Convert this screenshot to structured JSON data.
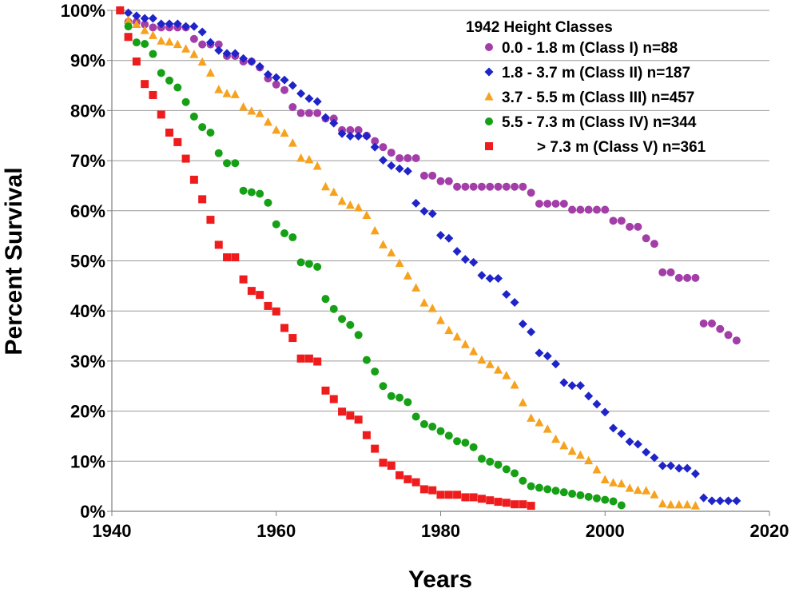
{
  "chart_data": {
    "type": "scatter",
    "xlabel": "Years",
    "ylabel": "Percent Survival",
    "xlim": [
      1940,
      2020
    ],
    "ylim": [
      0,
      100
    ],
    "x_ticks": [
      1940,
      1960,
      1980,
      2000,
      2020
    ],
    "y_ticks": [
      0,
      10,
      20,
      30,
      40,
      50,
      60,
      70,
      80,
      90,
      100
    ],
    "y_tick_labels": [
      "0%",
      "10%",
      "20%",
      "30%",
      "40%",
      "50%",
      "60%",
      "70%",
      "80%",
      "90%",
      "100%"
    ],
    "grid": "horizontal",
    "legend": {
      "title": "1942 Height Classes",
      "placement": "top-right"
    },
    "series": [
      {
        "name": "0.0 - 1.8 m (Class I) n=88",
        "marker": "circle",
        "color": "#a33ea8",
        "x": [
          1941,
          1942,
          1943,
          1944,
          1945,
          1946,
          1947,
          1948,
          1949,
          1950,
          1951,
          1952,
          1953,
          1954,
          1955,
          1956,
          1957,
          1958,
          1959,
          1960,
          1961,
          1962,
          1963,
          1964,
          1965,
          1966,
          1967,
          1968,
          1969,
          1970,
          1971,
          1972,
          1973,
          1974,
          1975,
          1976,
          1977,
          1978,
          1979,
          1980,
          1981,
          1982,
          1983,
          1984,
          1985,
          1986,
          1987,
          1988,
          1989,
          1990,
          1991,
          1992,
          1993,
          1994,
          1995,
          1996,
          1997,
          1998,
          1999,
          2000,
          2001,
          2002,
          2003,
          2004,
          2005,
          2006,
          2007,
          2008,
          2009,
          2010,
          2011,
          2012,
          2013,
          2014,
          2015,
          2016
        ],
        "y": [
          100,
          97.7,
          97.7,
          97.2,
          96.6,
          96.6,
          96.6,
          96.6,
          96.6,
          94.3,
          93.2,
          93.2,
          93.2,
          90.9,
          90.9,
          89.8,
          89.8,
          88.6,
          86.4,
          85.2,
          84.1,
          80.7,
          79.5,
          79.5,
          79.5,
          78.4,
          78.4,
          76.1,
          76.1,
          76.1,
          75,
          73.9,
          72.7,
          71.6,
          70.5,
          70.5,
          70.5,
          67,
          67,
          65.9,
          65.9,
          64.8,
          64.8,
          64.8,
          64.8,
          64.8,
          64.8,
          64.8,
          64.8,
          64.8,
          63.6,
          61.4,
          61.4,
          61.4,
          61.4,
          60.2,
          60.2,
          60.2,
          60.2,
          60.2,
          58,
          58,
          56.8,
          56.8,
          54.5,
          53.4,
          47.7,
          47.7,
          46.6,
          46.6,
          46.6,
          37.5,
          37.5,
          36.4,
          35.2,
          34.1
        ]
      },
      {
        "name": "1.8 - 3.7 m (Class II) n=187",
        "marker": "diamond",
        "color": "#1f24c9",
        "x": [
          1941,
          1942,
          1943,
          1944,
          1945,
          1946,
          1947,
          1948,
          1949,
          1950,
          1951,
          1952,
          1953,
          1954,
          1955,
          1956,
          1957,
          1958,
          1959,
          1960,
          1961,
          1962,
          1963,
          1964,
          1965,
          1966,
          1967,
          1968,
          1969,
          1970,
          1971,
          1972,
          1973,
          1974,
          1975,
          1976,
          1977,
          1978,
          1979,
          1980,
          1981,
          1982,
          1983,
          1984,
          1985,
          1986,
          1987,
          1988,
          1989,
          1990,
          1991,
          1992,
          1993,
          1994,
          1995,
          1996,
          1997,
          1998,
          1999,
          2000,
          2001,
          2002,
          2003,
          2004,
          2005,
          2006,
          2007,
          2008,
          2009,
          2010,
          2011,
          2012,
          2013,
          2014,
          2015,
          2016
        ],
        "y": [
          100,
          99.5,
          98.9,
          98.4,
          98.4,
          97.3,
          97.3,
          97.3,
          96.8,
          96.8,
          95.7,
          93.6,
          92,
          91.4,
          91.4,
          90.4,
          89.8,
          88.8,
          87.2,
          86.6,
          86.1,
          85,
          83.4,
          82.4,
          81.8,
          78.6,
          77.5,
          75.4,
          74.9,
          74.9,
          74.9,
          72.7,
          70.1,
          69,
          68.4,
          67.9,
          61.5,
          59.9,
          59.4,
          55.1,
          54.5,
          51.9,
          50.3,
          49.7,
          47.1,
          46.5,
          46.5,
          43.3,
          41.7,
          37.4,
          35.8,
          31.6,
          31,
          29.4,
          25.7,
          25.1,
          25.1,
          23,
          21.4,
          19.8,
          16.6,
          15.5,
          13.9,
          13.4,
          11.8,
          10.7,
          9.1,
          9.1,
          8.6,
          8.6,
          7.5,
          2.7,
          2.1,
          2.1,
          2.1,
          2.1
        ]
      },
      {
        "name": "3.7 - 5.5 m (Class III) n=457",
        "marker": "triangle",
        "color": "#f7a21e",
        "x": [
          1941,
          1942,
          1943,
          1944,
          1945,
          1946,
          1947,
          1948,
          1949,
          1950,
          1951,
          1952,
          1953,
          1954,
          1955,
          1956,
          1957,
          1958,
          1959,
          1960,
          1961,
          1962,
          1963,
          1964,
          1965,
          1966,
          1967,
          1968,
          1969,
          1970,
          1971,
          1972,
          1973,
          1974,
          1975,
          1976,
          1977,
          1978,
          1979,
          1980,
          1981,
          1982,
          1983,
          1984,
          1985,
          1986,
          1987,
          1988,
          1989,
          1990,
          1991,
          1992,
          1993,
          1994,
          1995,
          1996,
          1997,
          1998,
          1999,
          2000,
          2001,
          2002,
          2003,
          2004,
          2005,
          2006,
          2007,
          2008,
          2009,
          2010,
          2011
        ],
        "y": [
          100,
          98,
          97.2,
          96,
          95,
          93.9,
          93.7,
          93.2,
          92.3,
          91.2,
          89.7,
          87.5,
          84.2,
          83.4,
          83.2,
          80.7,
          79.9,
          79.4,
          77.7,
          76.1,
          75.5,
          73.5,
          70.5,
          70.2,
          68.9,
          64.8,
          63.7,
          61.9,
          61.1,
          60.6,
          59.1,
          56,
          53.2,
          51.6,
          49.5,
          47,
          44.6,
          41.6,
          40.5,
          38.1,
          36.1,
          34.8,
          33.3,
          31.9,
          30.2,
          29.3,
          28.2,
          27.1,
          25.2,
          21.7,
          18.6,
          17.7,
          16.4,
          14.4,
          13.1,
          12,
          11.2,
          10.1,
          8.3,
          6.3,
          5.7,
          5.5,
          4.6,
          4.2,
          4.1,
          3.3,
          1.5,
          1.3,
          1.3,
          1.3,
          1.1
        ]
      },
      {
        "name": "5.5 - 7.3 m (Class IV) n=344",
        "marker": "circle",
        "color": "#16a016",
        "x": [
          1941,
          1942,
          1943,
          1944,
          1945,
          1946,
          1947,
          1948,
          1949,
          1950,
          1951,
          1952,
          1953,
          1954,
          1955,
          1956,
          1957,
          1958,
          1959,
          1960,
          1961,
          1962,
          1963,
          1964,
          1965,
          1966,
          1967,
          1968,
          1969,
          1970,
          1971,
          1972,
          1973,
          1974,
          1975,
          1976,
          1977,
          1978,
          1979,
          1980,
          1981,
          1982,
          1983,
          1984,
          1985,
          1986,
          1987,
          1988,
          1989,
          1990,
          1991,
          1992,
          1993,
          1994,
          1995,
          1996,
          1997,
          1998,
          1999,
          2000,
          2001,
          2002
        ],
        "y": [
          100,
          96.8,
          93.6,
          93.3,
          91.3,
          87.5,
          86,
          84.6,
          81.7,
          78.8,
          76.7,
          75.6,
          71.5,
          69.5,
          69.5,
          64,
          63.7,
          63.4,
          61.6,
          57.3,
          55.5,
          54.7,
          49.7,
          49.4,
          48.8,
          42.4,
          40.4,
          38.4,
          37.2,
          35.2,
          30.2,
          27.9,
          25,
          23,
          22.7,
          21.8,
          18.9,
          17.4,
          16.9,
          16,
          15.1,
          14,
          13.7,
          12.8,
          10.5,
          9.9,
          9.3,
          8.4,
          7.6,
          6.1,
          5,
          4.7,
          4.4,
          4.1,
          3.8,
          3.5,
          3.2,
          2.9,
          2.6,
          2.3,
          2,
          1.2
        ]
      },
      {
        "name": "> 7.3 m (Class V) n=361",
        "marker": "square",
        "color": "#ee1c1c",
        "x": [
          1941,
          1942,
          1943,
          1944,
          1945,
          1946,
          1947,
          1948,
          1949,
          1950,
          1951,
          1952,
          1953,
          1954,
          1955,
          1956,
          1957,
          1958,
          1959,
          1960,
          1961,
          1962,
          1963,
          1964,
          1965,
          1966,
          1967,
          1968,
          1969,
          1970,
          1971,
          1972,
          1973,
          1974,
          1975,
          1976,
          1977,
          1978,
          1979,
          1980,
          1981,
          1982,
          1983,
          1984,
          1985,
          1986,
          1987,
          1988,
          1989,
          1990,
          1991
        ],
        "y": [
          100,
          94.7,
          89.8,
          85.3,
          83.1,
          79.2,
          75.6,
          73.7,
          70.4,
          66.2,
          62.3,
          58.2,
          53.2,
          50.7,
          50.7,
          46.3,
          44,
          43.2,
          41,
          39.9,
          36.6,
          34.6,
          30.5,
          30.5,
          29.9,
          24.1,
          22.4,
          19.9,
          19.1,
          18.3,
          15.2,
          12.5,
          9.7,
          9.1,
          7.2,
          6.4,
          5.8,
          4.4,
          4.2,
          3.3,
          3.3,
          3.3,
          2.8,
          2.8,
          2.5,
          2.2,
          1.9,
          1.7,
          1.4,
          1.4,
          1.1
        ]
      }
    ]
  }
}
